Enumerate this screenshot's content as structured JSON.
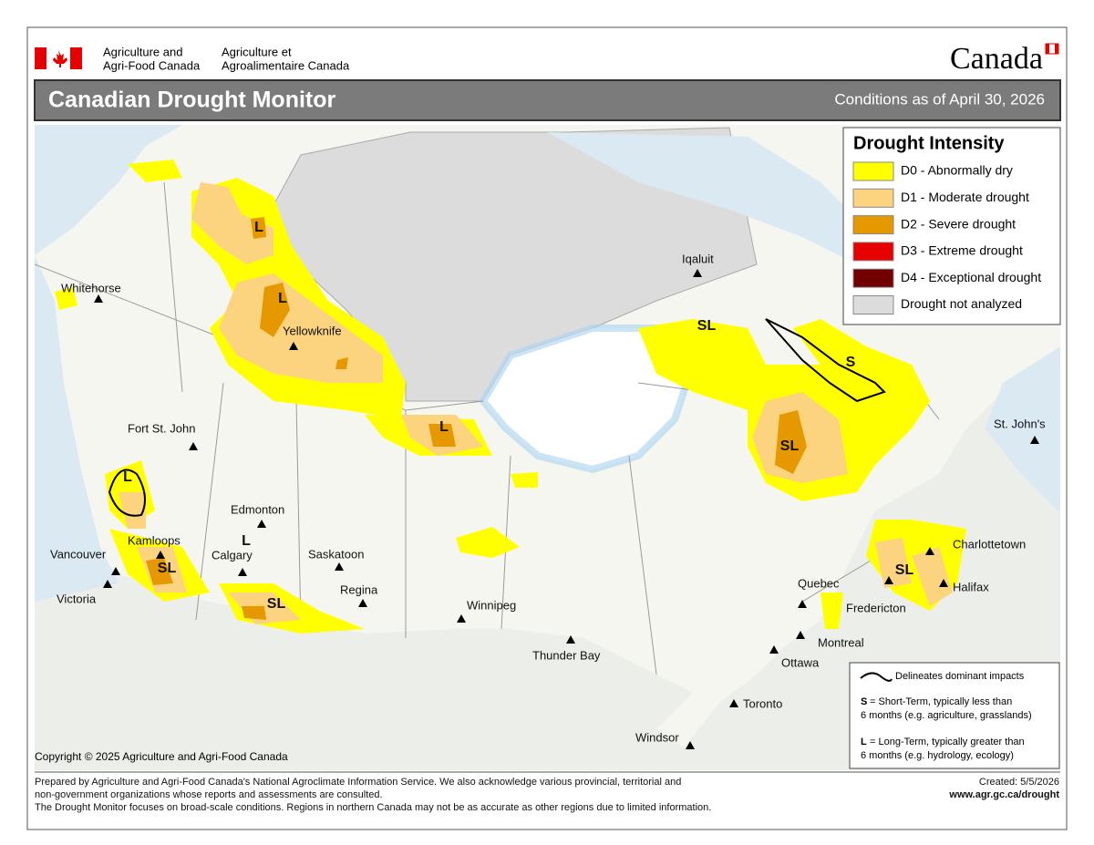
{
  "header": {
    "dept_en_1": "Agriculture and",
    "dept_en_2": "Agri-Food Canada",
    "dept_fr_1": "Agriculture et",
    "dept_fr_2": "Agroalimentaire Canada",
    "wordmark": "Canada",
    "title": "Canadian Drought Monitor",
    "date": "Conditions as of April 30, 2026"
  },
  "legend": {
    "title": "Drought Intensity",
    "items": [
      {
        "label": "D0 - Abnormally dry",
        "color": "#ffff00"
      },
      {
        "label": "D1 - Moderate drought",
        "color": "#fcd37f"
      },
      {
        "label": "D2 - Severe drought",
        "color": "#e69800"
      },
      {
        "label": "D3 - Extreme drought",
        "color": "#e60000"
      },
      {
        "label": "D4 - Exceptional drought",
        "color": "#730000"
      },
      {
        "label": "Drought not analyzed",
        "color": "#dcdcdc"
      }
    ]
  },
  "cities": [
    "Whitehorse",
    "Yellowknife",
    "Iqaluit",
    "Fort St. John",
    "Edmonton",
    "Kamloops",
    "Vancouver",
    "Victoria",
    "Calgary",
    "Saskatoon",
    "Regina",
    "Winnipeg",
    "Thunder Bay",
    "Quebec",
    "Fredericton",
    "Charlottetown",
    "Halifax",
    "Montreal",
    "Ottawa",
    "Toronto",
    "Windsor",
    "St. John's"
  ],
  "impact_labels": [
    "L",
    "L",
    "L",
    "L",
    "L",
    "SL",
    "SL",
    "SL",
    "S",
    "SL",
    "SL"
  ],
  "notes": {
    "line_label": "Delineates dominant impacts",
    "s_key": "S",
    "s_text_1": "= Short-Term, typically less than",
    "s_text_2": "6 months (e.g. agriculture, grasslands)",
    "l_key": "L",
    "l_text_1": "= Long-Term, typically greater  than",
    "l_text_2": "6 months (e.g. hydrology, ecology)"
  },
  "copyright": "Copyright © 2025 Agriculture and Agri-Food Canada",
  "footer": {
    "line_1": "Prepared by Agriculture and Agri-Food Canada's National Agroclimate Information Service.  We also acknowledge various provincial, territorial and",
    "line_2": "non-government organizations whose reports and assessments are consulted.",
    "line_3": "The Drought Monitor focuses on broad-scale conditions.  Regions in northern Canada may not be as accurate as other regions due to limited information.",
    "created": "Created: 5/5/2026",
    "url": "www.agr.gc.ca/drought"
  }
}
